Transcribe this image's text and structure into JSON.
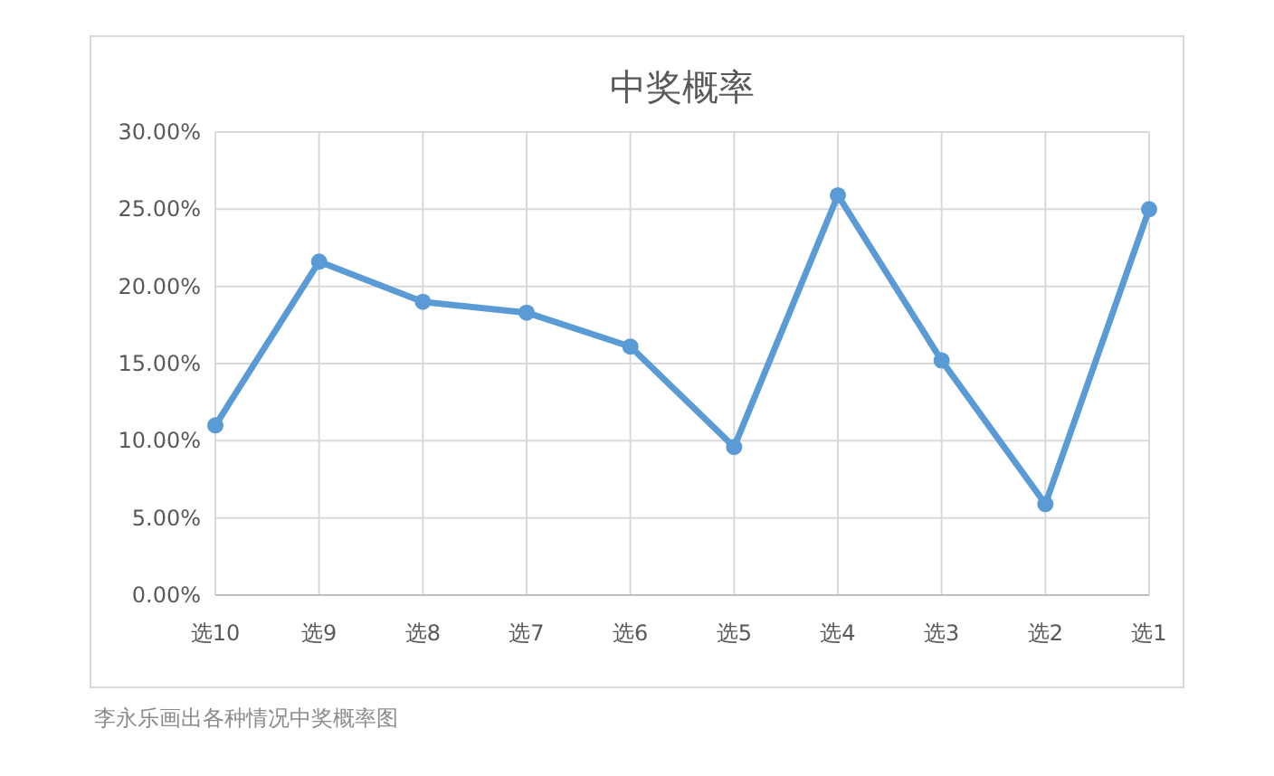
{
  "chart_data": {
    "type": "line",
    "title": "中奖概率",
    "categories": [
      "选10",
      "选9",
      "选8",
      "选7",
      "选6",
      "选5",
      "选4",
      "选3",
      "选2",
      "选1"
    ],
    "series": [
      {
        "color": "#5b9bd5",
        "values": [
          11.0,
          21.6,
          19.0,
          18.3,
          16.1,
          9.6,
          25.9,
          15.2,
          5.9,
          25.0
        ]
      }
    ],
    "ylim": [
      0,
      30
    ],
    "yticks": [
      {
        "value": 0,
        "label": "0.00%"
      },
      {
        "value": 5,
        "label": "5.00%"
      },
      {
        "value": 10,
        "label": "10.00%"
      },
      {
        "value": 15,
        "label": "15.00%"
      },
      {
        "value": 20,
        "label": "20.00%"
      },
      {
        "value": 25,
        "label": "25.00%"
      },
      {
        "value": 30,
        "label": "30.00%"
      }
    ],
    "grid": true,
    "marker": "circle",
    "line_style": "solid",
    "annotations": [
      "李永乐画出各种情况中奖概率图"
    ]
  }
}
